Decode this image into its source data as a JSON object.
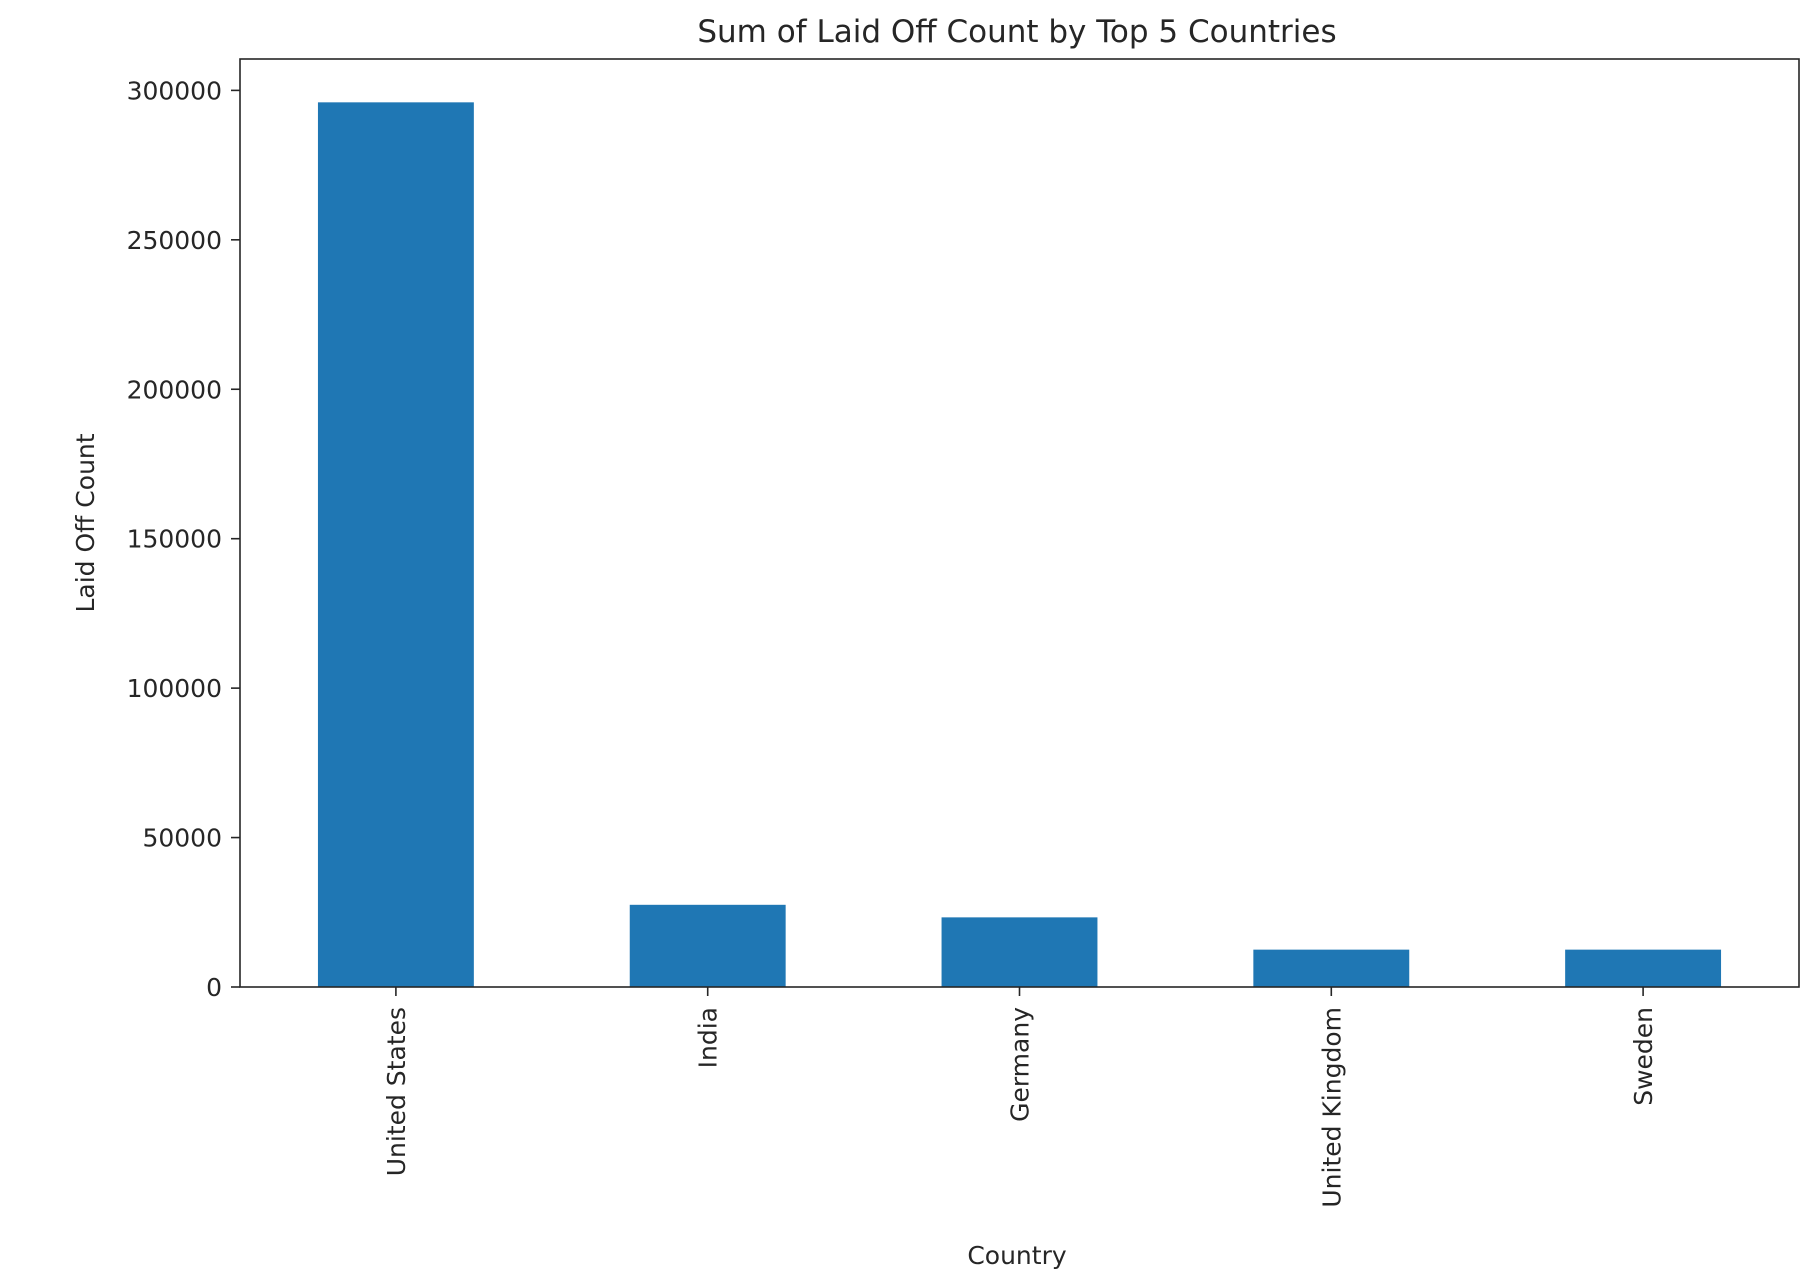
{
  "chart_data": {
    "type": "bar",
    "title": "Sum of Laid Off Count by Top 5 Countries",
    "xlabel": "Country",
    "ylabel": "Laid Off Count",
    "categories": [
      "United States",
      "India",
      "Germany",
      "United Kingdom",
      "Sweden"
    ],
    "values": [
      296000,
      27500,
      23300,
      12500,
      12500
    ],
    "ylim": [
      0,
      310500
    ],
    "yticks": [
      0,
      50000,
      100000,
      150000,
      200000,
      250000,
      300000
    ],
    "ytick_labels": [
      "0",
      "50000",
      "100000",
      "150000",
      "200000",
      "250000",
      "300000"
    ],
    "grid": false,
    "legend": "none",
    "bar_color": "#1f77b4",
    "axis_color": "#262626"
  }
}
